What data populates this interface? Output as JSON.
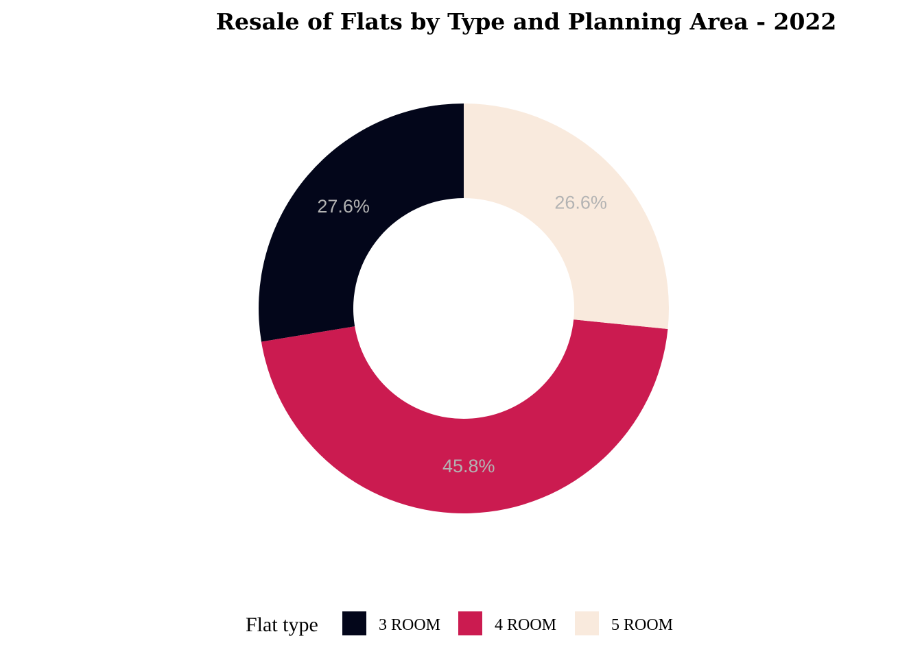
{
  "chart_data": {
    "type": "pie",
    "title": "Resale of Flats by Type and Planning Area - 2022",
    "donut": true,
    "categories": [
      "3 ROOM",
      "4 ROOM",
      "5 ROOM"
    ],
    "values": [
      27.6,
      45.8,
      26.6
    ],
    "labels": [
      "27.6%",
      "45.8%",
      "26.6%"
    ],
    "colors": [
      "#03061a",
      "#cb1b50",
      "#f9eadd"
    ],
    "label_color": "#b3b3b3",
    "legend": {
      "title": "Flat type",
      "placement": "bottom",
      "items": [
        "3 ROOM",
        "4 ROOM",
        "5 ROOM"
      ]
    }
  }
}
